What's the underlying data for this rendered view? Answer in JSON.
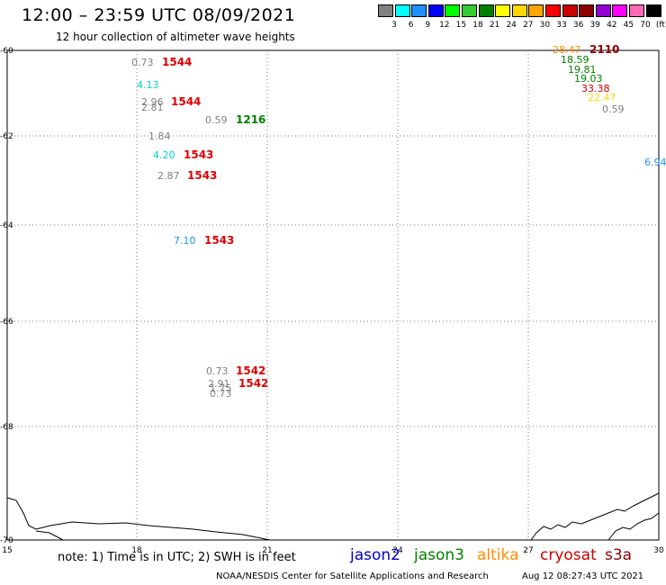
{
  "header": {
    "title": "12:00 – 23:59 UTC 08/09/2021",
    "subtitle": "12 hour collection of altimeter wave heights"
  },
  "scale": {
    "colors": [
      "#808080",
      "#00ffff",
      "#1e90ff",
      "#0000ff",
      "#00ff00",
      "#32cd32",
      "#008000",
      "#ffff00",
      "#ffd700",
      "#ffa500",
      "#ff0000",
      "#cc0000",
      "#8b0000",
      "#9400d3",
      "#ff00ff",
      "#ff69b4",
      "#000000"
    ],
    "labels": [
      "3",
      "6",
      "9",
      "12",
      "15",
      "18",
      "21",
      "24",
      "27",
      "30",
      "33",
      "36",
      "39",
      "42",
      "45",
      "70",
      "(ft)"
    ]
  },
  "axes": {
    "lat_labels": [
      "-60",
      "-62",
      "-64",
      "-66",
      "-68",
      "-70"
    ],
    "lon_labels": [
      "15",
      "18",
      "21",
      "24",
      "27",
      "30"
    ]
  },
  "observations": [
    {
      "value": "0.73",
      "color": "#808080",
      "label": "1544",
      "label_color": "#dd0000"
    },
    {
      "value": "4.13",
      "color": "#00ced1",
      "label": "",
      "label_color": "#dd0000"
    },
    {
      "value": "2.96",
      "color": "#808080",
      "label": "1544",
      "label_color": "#dd0000"
    },
    {
      "value": "2.81",
      "color": "#808080",
      "label": "",
      "label_color": "#dd0000"
    },
    {
      "value": "0.59",
      "color": "#808080",
      "label": "1216",
      "label_color": "#008000"
    },
    {
      "value": "1.84",
      "color": "#808080",
      "label": "",
      "label_color": "#dd0000"
    },
    {
      "value": "4.20",
      "color": "#00ced1",
      "label": "1543",
      "label_color": "#dd0000"
    },
    {
      "value": "2.87",
      "color": "#808080",
      "label": "1543",
      "label_color": "#dd0000"
    },
    {
      "value": "7.10",
      "color": "#1e90ff",
      "label": "1543",
      "label_color": "#dd0000"
    },
    {
      "value": "0.73",
      "color": "#808080",
      "label": "1542",
      "label_color": "#dd0000"
    },
    {
      "value": "2.91",
      "color": "#808080",
      "label": "1542",
      "label_color": "#dd0000"
    },
    {
      "value": "1.75",
      "color": "#808080",
      "label": "",
      "label_color": "#dd0000"
    },
    {
      "value": "0.73",
      "color": "#808080",
      "label": "",
      "label_color": "#dd0000"
    },
    {
      "value": "28.47",
      "color": "#ff8c00",
      "label": "2110",
      "label_color": "#8b0000"
    },
    {
      "value": "18.59",
      "color": "#008000",
      "label": "",
      "label_color": "#8b0000"
    },
    {
      "value": "19.81",
      "color": "#008000",
      "label": "",
      "label_color": "#8b0000"
    },
    {
      "value": "19.03",
      "color": "#008000",
      "label": "",
      "label_color": "#8b0000"
    },
    {
      "value": "33.38",
      "color": "#cc0000",
      "label": "",
      "label_color": "#8b0000"
    },
    {
      "value": "22.47",
      "color": "#ffd700",
      "label": "",
      "label_color": "#8b0000"
    },
    {
      "value": "0.59",
      "color": "#808080",
      "label": "",
      "label_color": "#8b0000"
    },
    {
      "value": "6.94",
      "color": "#1e90ff",
      "label": "",
      "label_color": "#8b0000"
    }
  ],
  "footer": {
    "note": "note: 1) Time is in UTC; 2) SWH is in feet",
    "legend": [
      {
        "name": "jason2",
        "color": "#0000cc"
      },
      {
        "name": "jason3",
        "color": "#008000"
      },
      {
        "name": "altika",
        "color": "#ff8c00"
      },
      {
        "name": "cryosat",
        "color": "#cc0000"
      },
      {
        "name": "s3a",
        "color": "#8b0000"
      }
    ],
    "credit": "NOAA/NESDIS Center for Satellite Applications and Research",
    "timestamp": "Aug 12 08:27:43 UTC 2021"
  }
}
